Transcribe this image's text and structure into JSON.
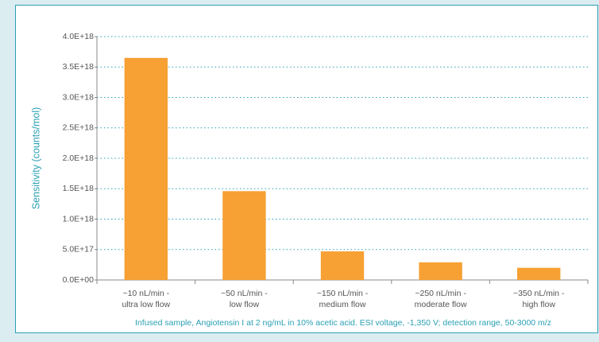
{
  "chart_data": {
    "type": "bar",
    "ylabel": "Sensitivity (counts/mol)",
    "caption": "Infused sample, Angiotensin I at 2 ng/mL in 10% acetic acid. ESI voltage, -1,350 V; detection range, 50-3000 m/z",
    "categories": [
      [
        "~10 nL/min -",
        "ultra low flow"
      ],
      [
        "~50 nL/min -",
        "low flow"
      ],
      [
        "~150 nL/min -",
        "medium flow"
      ],
      [
        "~250 nL/min -",
        "moderate flow"
      ],
      [
        "~350 nL/min -",
        "high flow"
      ]
    ],
    "values": [
      3.65e+18,
      1.46e+18,
      4.7e+17,
      2.9e+17,
      2e+17
    ],
    "color": "#f7a034",
    "ylim": [
      0,
      4e+18
    ],
    "yticks": [
      {
        "value": 0,
        "label": "0.0E+00"
      },
      {
        "value": 5e+17,
        "label": "5.0E+17"
      },
      {
        "value": 1e+18,
        "label": "1.0E+18"
      },
      {
        "value": 1.5e+18,
        "label": "1.5E+18"
      },
      {
        "value": 2e+18,
        "label": "2.0E+18"
      },
      {
        "value": 2.5e+18,
        "label": "2.5E+18"
      },
      {
        "value": 3e+18,
        "label": "3.0E+18"
      },
      {
        "value": 3.5e+18,
        "label": "3.5E+18"
      },
      {
        "value": 4e+18,
        "label": "4.0E+18"
      }
    ],
    "grid": true
  }
}
